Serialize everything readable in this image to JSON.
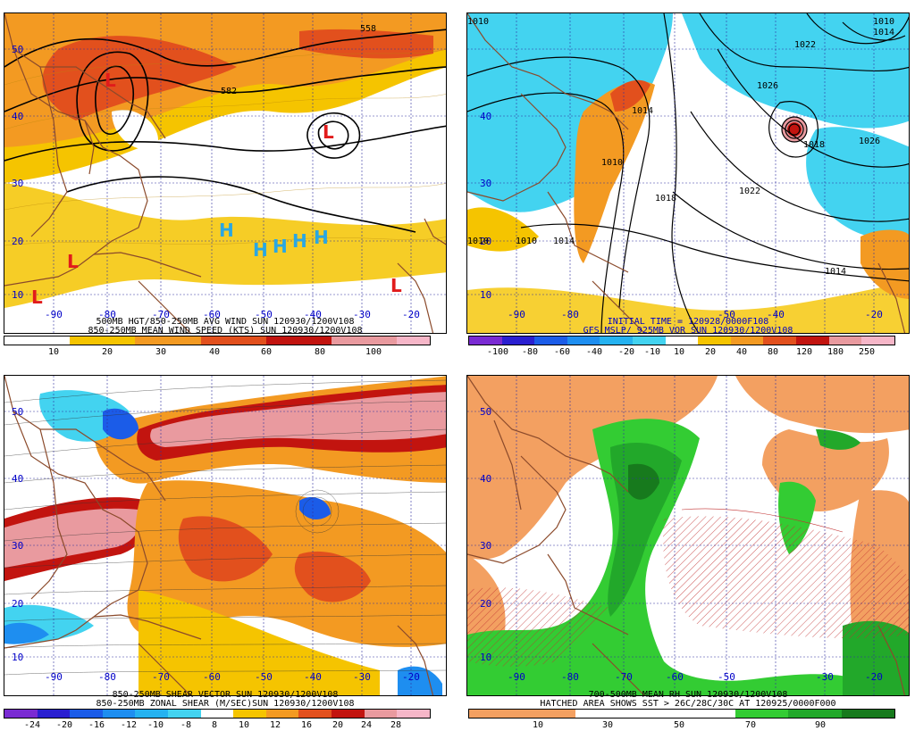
{
  "panels": [
    {
      "id": "p1",
      "caption1": "500MB HGT/850-250MB AVG WIND SUN 120930/1200V108",
      "caption2": "850-250MB MEAN WIND SPEED (KTS) SUN 120930/1200V108",
      "scale_labels": [
        "10",
        "20",
        "30",
        "40",
        "60",
        "80",
        "100"
      ],
      "scale_colors": [
        "#ffffff",
        "#ffffff",
        "#f5c400",
        "#f5c400",
        "#f39a22",
        "#f39a22",
        "#e2501d",
        "#e2501d",
        "#c2140f",
        "#c2140f",
        "#e99a9f",
        "#e99a9f",
        "#f6b6c8"
      ],
      "contour_labels": [
        "558",
        "582"
      ],
      "center_labels": [
        "L",
        "L",
        "L",
        "L",
        "L",
        "H",
        "H",
        "H",
        "H",
        "H"
      ]
    },
    {
      "id": "p2",
      "caption1": "INITIAL TIME = 120928/0000F108",
      "caption2": "GFS MSLP/ 925MB VOR SUN 120930/1200V108",
      "scale_labels": [
        "-100",
        "-80",
        "-60",
        "-40",
        "-20",
        "-10",
        "10",
        "20",
        "40",
        "80",
        "120",
        "180",
        "250"
      ],
      "scale_colors": [
        "#7a2bd3",
        "#2a1fd0",
        "#1b5ce8",
        "#1e8ef0",
        "#25b2f0",
        "#43d3f0",
        "#ffffff",
        "#f5c400",
        "#f39a22",
        "#e2501d",
        "#c2140f",
        "#e99a9f",
        "#f6b6c8"
      ],
      "contour_labels": [
        "1010",
        "1014",
        "1018",
        "1022",
        "1026",
        "1010",
        "1014",
        "1018",
        "1022",
        "1026",
        "1014",
        "1010",
        "1010",
        "1010",
        "1014"
      ]
    },
    {
      "id": "p3",
      "caption1": "850-250MB SHEAR VECTOR SUN 120930/1200V108",
      "caption2": "850-250MB ZONAL SHEAR (M/SEC)SUN 120930/1200V108",
      "scale_labels": [
        "-24",
        "-20",
        "-16",
        "-12",
        "-10",
        "-8",
        "8",
        "10",
        "12",
        "16",
        "20",
        "24",
        "28"
      ],
      "scale_colors": [
        "#7a2bd3",
        "#2a1fd0",
        "#1b5ce8",
        "#1e8ef0",
        "#25b2f0",
        "#43d3f0",
        "#ffffff",
        "#f5c400",
        "#f39a22",
        "#e2501d",
        "#c2140f",
        "#e99a9f",
        "#f6b6c8"
      ]
    },
    {
      "id": "p4",
      "caption1": "700-500MB MEAN RH SUN 120930/1200V108",
      "caption2": "HATCHED AREA SHOWS SST > 26C/28C/30C AT 120925/0000F000",
      "scale_labels": [
        "10",
        "30",
        "50",
        "70",
        "90"
      ],
      "scale_colors": [
        "#f3a061",
        "#f3a061",
        "#ffffff",
        "#ffffff",
        "#ffffff",
        "#33cc33",
        "#22a82a",
        "#177a1d"
      ]
    }
  ],
  "lat_labels": [
    "50",
    "40",
    "30",
    "20",
    "10"
  ],
  "lon_labels": [
    "-90",
    "-80",
    "-70",
    "-60",
    "-50",
    "-40",
    "-30",
    "-20"
  ],
  "colors": {
    "land": "#8b4a2b",
    "grid": "#3030a0",
    "contour": "#000000",
    "low": "#e11b1b",
    "high": "#2aa7e2"
  }
}
